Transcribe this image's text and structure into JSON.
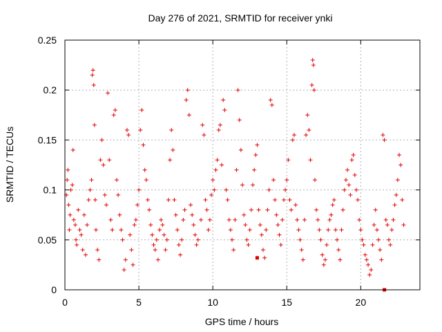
{
  "chart_data": {
    "type": "scatter",
    "title": "Day 276 of 2021, SRMTID for receiver ynki",
    "xlabel": "GPS time / hours",
    "ylabel": "SRMTID / TECUs",
    "xlim": [
      0,
      24
    ],
    "ylim": [
      0,
      0.25
    ],
    "x_ticks": [
      0,
      5,
      10,
      15,
      20
    ],
    "x_tick_labels": [
      "0",
      "5",
      "10",
      "15",
      "20"
    ],
    "y_ticks": [
      0,
      0.05,
      0.1,
      0.15,
      0.2,
      0.25
    ],
    "y_tick_labels": [
      "0",
      "0.05",
      "0.1",
      "0.15",
      "0.2",
      "0.25"
    ],
    "grid": true,
    "marker": "+",
    "series": [
      {
        "name": "SRMTID",
        "color": "#e00000",
        "points": [
          [
            0.1,
            0.095
          ],
          [
            0.15,
            0.11
          ],
          [
            0.2,
            0.12
          ],
          [
            0.25,
            0.085
          ],
          [
            0.3,
            0.06
          ],
          [
            0.35,
            0.075
          ],
          [
            0.4,
            0.1
          ],
          [
            0.5,
            0.105
          ],
          [
            0.55,
            0.14
          ],
          [
            0.6,
            0.07
          ],
          [
            0.7,
            0.065
          ],
          [
            0.75,
            0.05
          ],
          [
            0.8,
            0.045
          ],
          [
            0.9,
            0.08
          ],
          [
            1.0,
            0.06
          ],
          [
            1.1,
            0.055
          ],
          [
            1.2,
            0.04
          ],
          [
            1.3,
            0.075
          ],
          [
            1.4,
            0.035
          ],
          [
            1.5,
            0.065
          ],
          [
            1.6,
            0.09
          ],
          [
            1.7,
            0.1
          ],
          [
            1.8,
            0.11
          ],
          [
            1.85,
            0.215
          ],
          [
            1.9,
            0.22
          ],
          [
            1.95,
            0.205
          ],
          [
            2.0,
            0.165
          ],
          [
            2.05,
            0.09
          ],
          [
            2.1,
            0.06
          ],
          [
            2.2,
            0.04
          ],
          [
            2.3,
            0.03
          ],
          [
            2.4,
            0.13
          ],
          [
            2.5,
            0.15
          ],
          [
            2.6,
            0.125
          ],
          [
            2.7,
            0.095
          ],
          [
            2.8,
            0.085
          ],
          [
            2.9,
            0.197
          ],
          [
            3.0,
            0.13
          ],
          [
            3.1,
            0.07
          ],
          [
            3.2,
            0.06
          ],
          [
            3.3,
            0.175
          ],
          [
            3.4,
            0.18
          ],
          [
            3.5,
            0.11
          ],
          [
            3.6,
            0.095
          ],
          [
            3.7,
            0.075
          ],
          [
            3.8,
            0.06
          ],
          [
            3.9,
            0.05
          ],
          [
            4.0,
            0.02
          ],
          [
            4.1,
            0.03
          ],
          [
            4.2,
            0.16
          ],
          [
            4.3,
            0.155
          ],
          [
            4.4,
            0.055
          ],
          [
            4.5,
            0.04
          ],
          [
            4.6,
            0.025
          ],
          [
            4.7,
            0.065
          ],
          [
            4.8,
            0.07
          ],
          [
            4.9,
            0.085
          ],
          [
            5.0,
            0.1
          ],
          [
            5.1,
            0.16
          ],
          [
            5.2,
            0.18
          ],
          [
            5.3,
            0.145
          ],
          [
            5.4,
            0.12
          ],
          [
            5.5,
            0.11
          ],
          [
            5.6,
            0.09
          ],
          [
            5.7,
            0.08
          ],
          [
            5.8,
            0.065
          ],
          [
            5.9,
            0.055
          ],
          [
            6.0,
            0.045
          ],
          [
            6.1,
            0.04
          ],
          [
            6.2,
            0.05
          ],
          [
            6.3,
            0.03
          ],
          [
            6.4,
            0.06
          ],
          [
            6.5,
            0.07
          ],
          [
            6.6,
            0.065
          ],
          [
            6.7,
            0.055
          ],
          [
            6.8,
            0.04
          ],
          [
            6.9,
            0.05
          ],
          [
            7.0,
            0.09
          ],
          [
            7.1,
            0.13
          ],
          [
            7.2,
            0.16
          ],
          [
            7.3,
            0.14
          ],
          [
            7.4,
            0.09
          ],
          [
            7.5,
            0.075
          ],
          [
            7.6,
            0.06
          ],
          [
            7.7,
            0.045
          ],
          [
            7.8,
            0.035
          ],
          [
            7.9,
            0.05
          ],
          [
            8.0,
            0.07
          ],
          [
            8.1,
            0.08
          ],
          [
            8.2,
            0.19
          ],
          [
            8.3,
            0.2
          ],
          [
            8.4,
            0.175
          ],
          [
            8.5,
            0.085
          ],
          [
            8.6,
            0.075
          ],
          [
            8.7,
            0.065
          ],
          [
            8.8,
            0.055
          ],
          [
            8.9,
            0.045
          ],
          [
            9.0,
            0.05
          ],
          [
            9.2,
            0.07
          ],
          [
            9.3,
            0.165
          ],
          [
            9.4,
            0.155
          ],
          [
            9.5,
            0.09
          ],
          [
            9.6,
            0.08
          ],
          [
            9.7,
            0.06
          ],
          [
            9.8,
            0.07
          ],
          [
            9.9,
            0.095
          ],
          [
            10.0,
            0.11
          ],
          [
            10.1,
            0.1
          ],
          [
            10.2,
            0.12
          ],
          [
            10.3,
            0.13
          ],
          [
            10.4,
            0.16
          ],
          [
            10.5,
            0.165
          ],
          [
            10.6,
            0.125
          ],
          [
            10.7,
            0.19
          ],
          [
            10.8,
            0.18
          ],
          [
            10.9,
            0.1
          ],
          [
            11.0,
            0.09
          ],
          [
            11.1,
            0.07
          ],
          [
            11.2,
            0.06
          ],
          [
            11.3,
            0.05
          ],
          [
            11.4,
            0.04
          ],
          [
            11.5,
            0.07
          ],
          [
            11.6,
            0.12
          ],
          [
            11.7,
            0.2
          ],
          [
            11.8,
            0.17
          ],
          [
            11.9,
            0.14
          ],
          [
            12.0,
            0.105
          ],
          [
            12.1,
            0.075
          ],
          [
            12.2,
            0.065
          ],
          [
            12.3,
            0.05
          ],
          [
            12.4,
            0.045
          ],
          [
            12.5,
            0.06
          ],
          [
            12.6,
            0.08
          ],
          [
            12.7,
            0.105
          ],
          [
            12.8,
            0.12
          ],
          [
            12.9,
            0.135
          ],
          [
            13.0,
            0.145
          ],
          [
            13.1,
            0.08
          ],
          [
            13.2,
            0.065
          ],
          [
            13.3,
            0.055
          ],
          [
            13.4,
            0.04
          ],
          [
            13.5,
            0.032
          ],
          [
            13.6,
            0.06
          ],
          [
            13.7,
            0.08
          ],
          [
            13.8,
            0.1
          ],
          [
            13.9,
            0.19
          ],
          [
            14.0,
            0.185
          ],
          [
            14.1,
            0.11
          ],
          [
            14.2,
            0.09
          ],
          [
            14.3,
            0.075
          ],
          [
            14.4,
            0.065
          ],
          [
            14.5,
            0.055
          ],
          [
            14.6,
            0.045
          ],
          [
            14.7,
            0.07
          ],
          [
            14.8,
            0.09
          ],
          [
            14.9,
            0.1
          ],
          [
            15.0,
            0.11
          ],
          [
            15.1,
            0.13
          ],
          [
            15.2,
            0.09
          ],
          [
            15.3,
            0.08
          ],
          [
            15.4,
            0.15
          ],
          [
            15.5,
            0.155
          ],
          [
            15.6,
            0.085
          ],
          [
            15.7,
            0.07
          ],
          [
            15.8,
            0.06
          ],
          [
            15.9,
            0.05
          ],
          [
            16.0,
            0.04
          ],
          [
            16.1,
            0.03
          ],
          [
            16.2,
            0.07
          ],
          [
            16.3,
            0.155
          ],
          [
            16.4,
            0.175
          ],
          [
            16.5,
            0.16
          ],
          [
            16.6,
            0.13
          ],
          [
            16.7,
            0.205
          ],
          [
            16.75,
            0.23
          ],
          [
            16.8,
            0.225
          ],
          [
            16.85,
            0.2
          ],
          [
            16.9,
            0.11
          ],
          [
            17.0,
            0.08
          ],
          [
            17.1,
            0.07
          ],
          [
            17.2,
            0.06
          ],
          [
            17.3,
            0.05
          ],
          [
            17.4,
            0.035
          ],
          [
            17.5,
            0.025
          ],
          [
            17.6,
            0.03
          ],
          [
            17.7,
            0.045
          ],
          [
            17.8,
            0.06
          ],
          [
            17.9,
            0.07
          ],
          [
            18.0,
            0.075
          ],
          [
            18.1,
            0.085
          ],
          [
            18.2,
            0.09
          ],
          [
            18.3,
            0.06
          ],
          [
            18.4,
            0.05
          ],
          [
            18.5,
            0.04
          ],
          [
            18.6,
            0.03
          ],
          [
            18.7,
            0.06
          ],
          [
            18.8,
            0.08
          ],
          [
            18.9,
            0.1
          ],
          [
            19.0,
            0.11
          ],
          [
            19.1,
            0.12
          ],
          [
            19.2,
            0.105
          ],
          [
            19.3,
            0.095
          ],
          [
            19.4,
            0.13
          ],
          [
            19.5,
            0.135
          ],
          [
            19.6,
            0.115
          ],
          [
            19.7,
            0.1
          ],
          [
            19.8,
            0.09
          ],
          [
            19.9,
            0.07
          ],
          [
            20.0,
            0.06
          ],
          [
            20.1,
            0.05
          ],
          [
            20.2,
            0.045
          ],
          [
            20.3,
            0.035
          ],
          [
            20.4,
            0.03
          ],
          [
            20.5,
            0.025
          ],
          [
            20.6,
            0.015
          ],
          [
            20.7,
            0.02
          ],
          [
            20.8,
            0.045
          ],
          [
            20.9,
            0.065
          ],
          [
            21.0,
            0.08
          ],
          [
            21.1,
            0.06
          ],
          [
            21.2,
            0.05
          ],
          [
            21.3,
            0.04
          ],
          [
            21.4,
            0.03
          ],
          [
            21.5,
            0.155
          ],
          [
            21.6,
            0.15
          ],
          [
            21.7,
            0.07
          ],
          [
            21.8,
            0.065
          ],
          [
            21.9,
            0.05
          ],
          [
            22.0,
            0.045
          ],
          [
            22.1,
            0.06
          ],
          [
            22.2,
            0.07
          ],
          [
            22.3,
            0.085
          ],
          [
            22.4,
            0.095
          ],
          [
            22.5,
            0.11
          ],
          [
            22.6,
            0.135
          ],
          [
            22.7,
            0.125
          ],
          [
            22.8,
            0.09
          ],
          [
            22.9,
            0.065
          ]
        ]
      }
    ],
    "outlier_markers": [
      [
        13.0,
        0.032
      ],
      [
        21.6,
        0.0
      ]
    ]
  }
}
